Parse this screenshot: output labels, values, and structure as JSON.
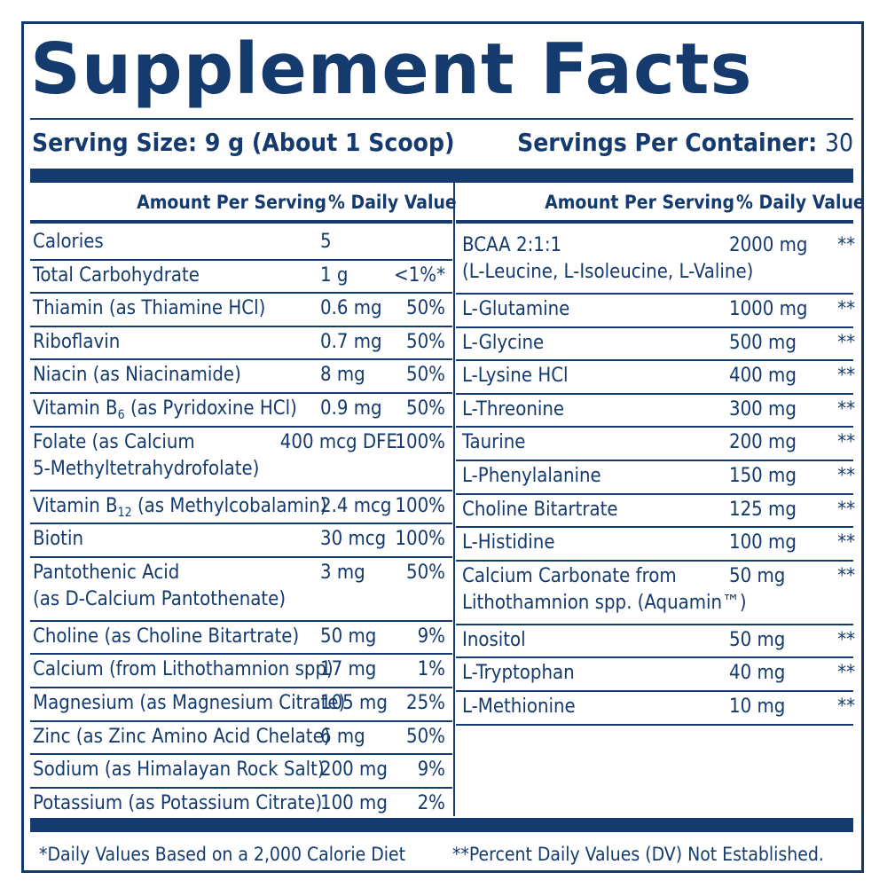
{
  "title": "Supplement Facts",
  "serving": {
    "size_label": "Serving Size:",
    "size_value": "9 g (About 1 Scoop)",
    "per_container_label": "Servings Per Container:",
    "per_container_value": "30"
  },
  "headers": {
    "amount": "Amount Per Serving",
    "daily": "% Daily Value"
  },
  "left_rows": [
    {
      "name": "Calories",
      "amount": "5",
      "dv": ""
    },
    {
      "name": "Total Carbohydrate",
      "amount": "1 g",
      "dv": "<1%*"
    },
    {
      "name": "Thiamin (as Thiamine HCl)",
      "amount": "0.6 mg",
      "dv": "50%"
    },
    {
      "name": "Riboflavin",
      "amount": "0.7 mg",
      "dv": "50%"
    },
    {
      "name": "Niacin (as Niacinamide)",
      "amount": "8 mg",
      "dv": "50%"
    },
    {
      "name_prefix": "Vitamin B",
      "name_sub": "6",
      "name_suffix": " (as Pyridoxine HCl)",
      "amount": "0.9 mg",
      "dv": "50%"
    },
    {
      "name": "Folate (as Calcium",
      "name2": "5-Methyltetrahydrofolate)",
      "amount": "400 mcg DFE",
      "dv": "100%"
    },
    {
      "name_prefix": "Vitamin B",
      "name_sub": "12",
      "name_suffix": " (as Methylcobalamin)",
      "amount": "2.4 mcg",
      "dv": "100%"
    },
    {
      "name": "Biotin",
      "amount": "30 mcg",
      "dv": "100%"
    },
    {
      "name": "Pantothenic Acid",
      "name2": "(as D-Calcium Pantothenate)",
      "amount": "3 mg",
      "dv": "50%"
    },
    {
      "name": "Choline (as Choline Bitartrate)",
      "amount": "50 mg",
      "dv": "9%"
    },
    {
      "name": "Calcium (from Lithothamnion spp)",
      "amount": "17 mg",
      "dv": "1%"
    },
    {
      "name": "Magnesium (as Magnesium Citrate)",
      "amount": "105 mg",
      "dv": "25%"
    },
    {
      "name": "Zinc (as Zinc Amino Acid Chelate)",
      "amount": "6 mg",
      "dv": "50%"
    },
    {
      "name": "Sodium (as Himalayan Rock Salt)",
      "amount": "200 mg",
      "dv": "9%"
    },
    {
      "name": "Potassium (as Potassium Citrate)",
      "amount": "100 mg",
      "dv": "2%"
    }
  ],
  "right_rows": [
    {
      "name": "BCAA 2:1:1",
      "name2": "(L-Leucine, L-Isoleucine, L-Valine)",
      "amount": "2000 mg",
      "dv": "**"
    },
    {
      "name": "L-Glutamine",
      "amount": "1000 mg",
      "dv": "**"
    },
    {
      "name": "L-Glycine",
      "amount": "500 mg",
      "dv": "**"
    },
    {
      "name": "L-Lysine HCl",
      "amount": "400 mg",
      "dv": "**"
    },
    {
      "name": "L-Threonine",
      "amount": "300 mg",
      "dv": "**"
    },
    {
      "name": "Taurine",
      "amount": "200 mg",
      "dv": "**"
    },
    {
      "name": "L-Phenylalanine",
      "amount": "150 mg",
      "dv": "**"
    },
    {
      "name": "Choline Bitartrate",
      "amount": "125 mg",
      "dv": "**"
    },
    {
      "name": "L-Histidine",
      "amount": "100 mg",
      "dv": "**"
    },
    {
      "name": "Calcium Carbonate from",
      "name2": "Lithothamnion spp. (Aquamin™)",
      "amount": "50 mg",
      "dv": "**"
    },
    {
      "name": "Inositol",
      "amount": "50 mg",
      "dv": "**"
    },
    {
      "name": "L-Tryptophan",
      "amount": "40 mg",
      "dv": "**"
    },
    {
      "name": "L-Methionine",
      "amount": "10 mg",
      "dv": "**"
    }
  ],
  "footnotes": {
    "left": "*Daily Values Based on a 2,000 Calorie Diet",
    "right": "**Percent Daily Values (DV) Not Established."
  },
  "colors": {
    "ink": "#143a6e",
    "background": "#ffffff"
  }
}
